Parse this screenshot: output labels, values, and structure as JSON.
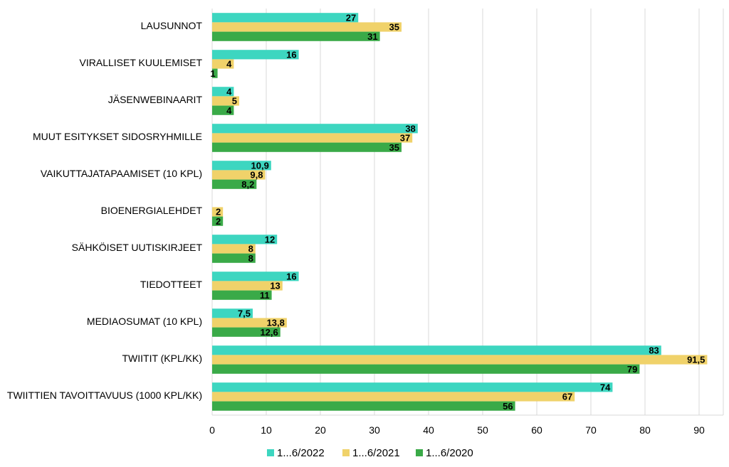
{
  "chart_data": {
    "type": "bar",
    "orientation": "horizontal",
    "categories": [
      "LAUSUNNOT",
      "VIRALLISET KUULEMISET",
      "JÄSENWEBINAARIT",
      "MUUT ESITYKSET SIDOSRYHMILLE",
      "VAIKUTTAJATAPAAMISET (10 KPL)",
      "BIOENERGIALEHDET",
      "SÄHKÖISET UUTISKIRJEET",
      "TIEDOTTEET",
      "MEDIAOSUMAT (10 KPL)",
      "TWIITIT (KPL/KK)",
      "TWIITTIEN TAVOITTAVUUS (1000 KPL/KK)"
    ],
    "series": [
      {
        "name": "1...6/2022",
        "color": "#3dd6c0",
        "values": [
          27,
          16,
          4,
          38,
          10.9,
          null,
          12,
          16,
          7.5,
          83,
          74
        ],
        "labels": [
          "27",
          "16",
          "4",
          "38",
          "10,9",
          "",
          "12",
          "16",
          "7,5",
          "83",
          "74"
        ]
      },
      {
        "name": "1...6/2021",
        "color": "#f0d26a",
        "values": [
          35,
          4,
          5,
          37,
          9.8,
          2,
          8,
          13,
          13.8,
          91.5,
          67
        ],
        "labels": [
          "35",
          "4",
          "5",
          "37",
          "9,8",
          "2",
          "8",
          "13",
          "13,8",
          "91,5",
          "67"
        ]
      },
      {
        "name": "1...6/2020",
        "color": "#3aaa48",
        "values": [
          31,
          1,
          4,
          35,
          8.2,
          2,
          8,
          11,
          12.6,
          79,
          56
        ],
        "labels": [
          "31",
          "1",
          "4",
          "35",
          "8,2",
          "2",
          "8",
          "11",
          "12,6",
          "79",
          "56"
        ]
      }
    ],
    "xlim": [
      0,
      95
    ],
    "xticks": [
      0,
      10,
      20,
      30,
      40,
      50,
      60,
      70,
      80,
      90
    ],
    "grid": true,
    "legend_position": "bottom",
    "title": "",
    "xlabel": "",
    "ylabel": ""
  }
}
